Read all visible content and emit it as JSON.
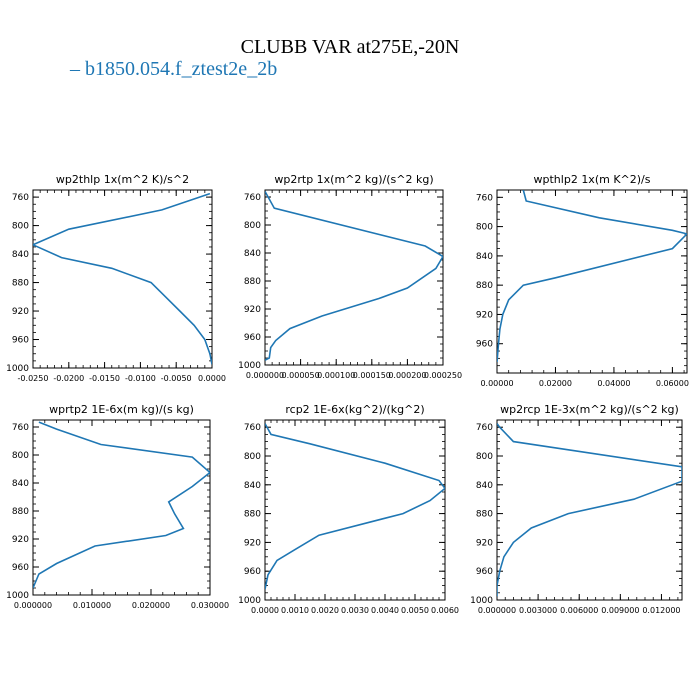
{
  "title": "CLUBB VAR at275E,-20N",
  "legend": {
    "marker": "–",
    "label": "b1850.054.f_ztest2e_2b",
    "color": "#1f77b4"
  },
  "chart_data": [
    {
      "type": "line",
      "title": "wp2thlp",
      "units": "1x(m^2 K)/s^2",
      "xlim": [
        -0.025,
        0.0
      ],
      "ylim": [
        1000,
        750
      ],
      "xticks": [
        -0.025,
        -0.02,
        -0.015,
        -0.01,
        -0.005,
        0.0
      ],
      "xticklabels": [
        "-0.0250",
        "-0.0200",
        "-0.0150",
        "-0.0100",
        "-0.0050",
        "0.0000"
      ],
      "yticks": [
        760,
        800,
        840,
        880,
        920,
        960,
        1000
      ],
      "yticklabels": [
        "760",
        "800",
        "840",
        "880",
        "920",
        "960",
        "1000"
      ],
      "series": [
        {
          "color": "#1f77b4",
          "x": [
            -0.0003,
            -0.007,
            -0.02,
            -0.025,
            -0.021,
            -0.014,
            -0.0085,
            -0.0065,
            -0.0045,
            -0.0025,
            -0.001,
            -0.0003,
            0.0
          ],
          "y": [
            755,
            778,
            805,
            827,
            845,
            860,
            880,
            900,
            920,
            940,
            960,
            980,
            995
          ]
        }
      ]
    },
    {
      "type": "line",
      "title": "wp2rtp",
      "units": "1x(m^2 kg)/(s^2 kg)",
      "xlim": [
        0.0,
        0.00025
      ],
      "ylim": [
        1000,
        750
      ],
      "xticks": [
        0.0,
        5e-05,
        0.0001,
        0.00015,
        0.0002,
        0.00025
      ],
      "xticklabels": [
        "0.000000",
        "0.000050",
        "0.000100",
        "0.000150",
        "0.000200",
        "0.000250"
      ],
      "yticks": [
        760,
        800,
        840,
        880,
        920,
        960,
        1000
      ],
      "yticklabels": [
        "760",
        "800",
        "840",
        "880",
        "920",
        "960",
        "1000"
      ],
      "series": [
        {
          "color": "#1f77b4",
          "x": [
            0.0,
            1.3e-05,
            0.000225,
            0.00025,
            0.00024,
            0.0002,
            0.00016,
            8e-05,
            3.5e-05,
            1.5e-05,
            8e-06,
            6e-06,
            0.0
          ],
          "y": [
            752,
            776,
            830,
            845,
            862,
            890,
            905,
            930,
            948,
            965,
            975,
            990,
            993
          ]
        }
      ]
    },
    {
      "type": "line",
      "title": "wpthlp2",
      "units": "1x(m K^2)/s",
      "xlim": [
        0.0,
        0.065
      ],
      "ylim": [
        1000,
        750
      ],
      "xticks": [
        0.0,
        0.02,
        0.04,
        0.06
      ],
      "xticklabels": [
        "0.00000",
        "0.02000",
        "0.04000",
        "0.06000"
      ],
      "yticks": [
        760,
        800,
        840,
        880,
        920,
        960
      ],
      "yticklabels": [
        "760",
        "800",
        "840",
        "880",
        "920",
        "960"
      ],
      "series": [
        {
          "color": "#1f77b4",
          "x": [
            0.009,
            0.01,
            0.035,
            0.06,
            0.065,
            0.06,
            0.02,
            0.009,
            0.004,
            0.002,
            0.001,
            0.0005,
            0.0
          ],
          "y": [
            750,
            765,
            788,
            805,
            810,
            830,
            870,
            880,
            900,
            920,
            940,
            960,
            985
          ]
        }
      ]
    },
    {
      "type": "line",
      "title": "wprtp2",
      "units": "1E-6x(m kg)/(s kg)",
      "xlim": [
        0.0,
        0.03
      ],
      "ylim": [
        1000,
        750
      ],
      "xticks": [
        0.0,
        0.01,
        0.02,
        0.03
      ],
      "xticklabels": [
        "0.000000",
        "0.010000",
        "0.020000",
        "0.030000"
      ],
      "yticks": [
        760,
        800,
        840,
        880,
        920,
        960,
        1000
      ],
      "yticklabels": [
        "760",
        "800",
        "840",
        "880",
        "920",
        "960",
        "1000"
      ],
      "series": [
        {
          "color": "#1f77b4",
          "x": [
            0.001,
            0.004,
            0.0115,
            0.027,
            0.03,
            0.027,
            0.023,
            0.024,
            0.0255,
            0.0225,
            0.0105,
            0.004,
            0.001,
            0.0
          ],
          "y": [
            753,
            763,
            785,
            803,
            825,
            845,
            867,
            884,
            905,
            915,
            930,
            955,
            970,
            990
          ]
        }
      ]
    },
    {
      "type": "line",
      "title": "rcp2",
      "units": "1E-6x(kg^2)/(kg^2)",
      "xlim": [
        0.0,
        0.006
      ],
      "ylim": [
        1000,
        750
      ],
      "xticks": [
        0.0,
        0.001,
        0.002,
        0.003,
        0.004,
        0.005,
        0.006
      ],
      "xticklabels": [
        "0.0000",
        "0.0010",
        "0.0020",
        "0.0030",
        "0.0040",
        "0.0050",
        "0.0060"
      ],
      "yticks": [
        760,
        800,
        840,
        880,
        920,
        960,
        1000
      ],
      "yticklabels": [
        "760",
        "800",
        "840",
        "880",
        "920",
        "960",
        "1000"
      ],
      "series": [
        {
          "color": "#1f77b4",
          "x": [
            0.0,
            0.0002,
            0.0015,
            0.004,
            0.0058,
            0.006,
            0.0055,
            0.0046,
            0.0018,
            0.001,
            0.0004,
            0.0001,
            0.0
          ],
          "y": [
            755,
            770,
            783,
            810,
            834,
            845,
            862,
            880,
            910,
            930,
            945,
            965,
            985
          ]
        }
      ]
    },
    {
      "type": "line",
      "title": "wp2rcp",
      "units": "1E-3x(m^2 kg)/(s^2 kg)",
      "xlim": [
        0.0,
        0.0135
      ],
      "ylim": [
        1000,
        750
      ],
      "xticks": [
        0.0,
        0.003,
        0.006,
        0.009,
        0.012
      ],
      "xticklabels": [
        "0.000000",
        "0.003000",
        "0.006000",
        "0.009000",
        "0.012000"
      ],
      "yticks": [
        760,
        800,
        840,
        880,
        920,
        960,
        1000
      ],
      "yticklabels": [
        "760",
        "800",
        "840",
        "880",
        "920",
        "960",
        "1000"
      ],
      "series": [
        {
          "color": "#1f77b4",
          "x": [
            0.0,
            0.0002,
            0.0012,
            0.0135,
            0.0135,
            0.01,
            0.0052,
            0.0025,
            0.0012,
            0.0005,
            0.0002,
            0.0,
            0.0
          ],
          "y": [
            755,
            760,
            780,
            815,
            835,
            860,
            880,
            900,
            920,
            940,
            960,
            980,
            995
          ]
        }
      ]
    }
  ]
}
